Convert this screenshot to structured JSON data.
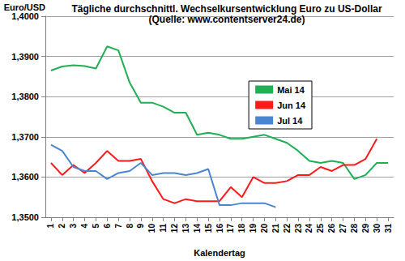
{
  "chart_data": {
    "type": "line",
    "title": "Tägliche durchschnittl. Wechselkursentwicklung Euro zu US-Dollar",
    "subtitle": "(Quelle: www.contentserver24.de)",
    "y_label": "Euro/USD",
    "x_label": "Kalendertag",
    "categories": [
      "1",
      "2",
      "3",
      "4",
      "5",
      "6",
      "7",
      "8",
      "9",
      "10",
      "11",
      "12",
      "13",
      "14",
      "15",
      "16",
      "17",
      "18",
      "19",
      "20",
      "21",
      "22",
      "23",
      "24",
      "25",
      "26",
      "27",
      "28",
      "29",
      "30",
      "31"
    ],
    "series": [
      {
        "name": "Mai 14",
        "color": "#1faf55",
        "values": [
          1.3865,
          1.3875,
          1.3878,
          1.3876,
          1.387,
          1.3925,
          1.3915,
          1.3835,
          1.3785,
          1.3785,
          1.3775,
          1.376,
          1.376,
          1.3705,
          1.371,
          1.3705,
          1.3695,
          1.3695,
          1.37,
          1.3705,
          1.3695,
          1.3685,
          1.3665,
          1.364,
          1.3635,
          1.364,
          1.3635,
          1.3595,
          1.3605,
          1.3635,
          1.3635
        ]
      },
      {
        "name": "Jun 14",
        "color": "#ff1a1a",
        "values": [
          1.3635,
          1.3605,
          1.363,
          1.361,
          1.3635,
          1.3665,
          1.364,
          1.364,
          1.3645,
          1.359,
          1.3545,
          1.3535,
          1.3545,
          1.354,
          1.354,
          1.354,
          1.3575,
          1.355,
          1.36,
          1.3585,
          1.3585,
          1.359,
          1.3605,
          1.3605,
          1.3625,
          1.3615,
          1.363,
          1.363,
          1.3645,
          1.3695,
          null
        ]
      },
      {
        "name": "Jul 14",
        "color": "#4a86d0",
        "values": [
          1.368,
          1.3665,
          1.3625,
          1.3615,
          1.3615,
          1.3595,
          1.361,
          1.3615,
          1.3635,
          1.3605,
          1.361,
          1.361,
          1.3605,
          1.361,
          1.362,
          1.353,
          1.353,
          1.3535,
          1.3535,
          1.3535,
          1.3525,
          null,
          null,
          null,
          null,
          null,
          null,
          null,
          null,
          null,
          null
        ]
      }
    ],
    "ylim": [
      1.35,
      1.4
    ],
    "yticks": [
      {
        "value": 1.35,
        "label": "1,3500"
      },
      {
        "value": 1.36,
        "label": "1,3600"
      },
      {
        "value": 1.37,
        "label": "1,3700"
      },
      {
        "value": 1.38,
        "label": "1,3800"
      },
      {
        "value": 1.39,
        "label": "1,3900"
      },
      {
        "value": 1.4,
        "label": "1,4000"
      }
    ],
    "grid": true,
    "legend": "right"
  }
}
